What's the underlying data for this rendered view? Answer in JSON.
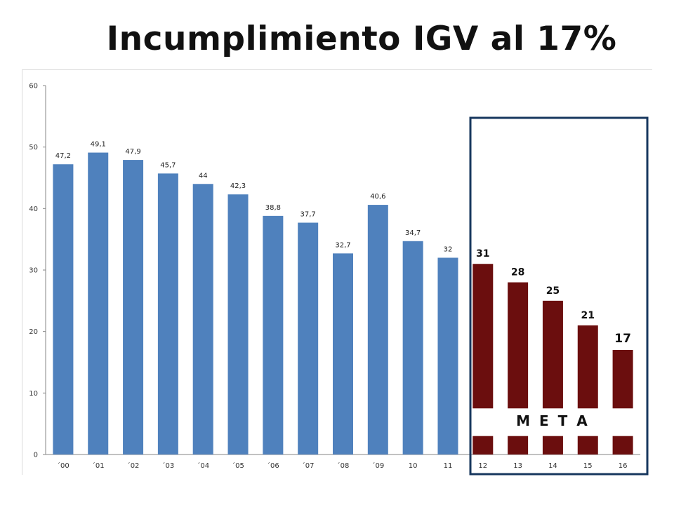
{
  "title": "Incumplimiento IGV al 17%",
  "chart_data": {
    "type": "bar",
    "title": "Incumplimiento IGV al 17%",
    "categories": [
      "´00",
      "´01",
      "´02",
      "´03",
      "´04",
      "´05",
      "´06",
      "´07",
      "´08",
      "´09",
      "10",
      "11",
      "12",
      "13",
      "14",
      "15",
      "16"
    ],
    "series": [
      {
        "name": "",
        "color": "#4f81bd",
        "values": [
          47.2,
          49.1,
          47.9,
          45.7,
          44,
          42.3,
          38.8,
          37.7,
          32.7,
          40.6,
          34.7,
          32,
          null,
          null,
          null,
          null,
          null
        ],
        "labels": [
          "47,2",
          "49,1",
          "47,9",
          "45,7",
          "44",
          "42,3",
          "38,8",
          "37,7",
          "32,7",
          "40,6",
          "34,7",
          "32",
          "",
          "",
          "",
          "",
          ""
        ]
      },
      {
        "name": "",
        "color": "#6b0e0e",
        "values": [
          null,
          null,
          null,
          null,
          null,
          null,
          null,
          null,
          null,
          null,
          null,
          null,
          31,
          28,
          25,
          21,
          17
        ],
        "labels": [
          "",
          "",
          "",
          "",
          "",
          "",
          "",
          "",
          "",
          "",
          "",
          "",
          "31",
          "28",
          "25",
          "21",
          "17"
        ]
      }
    ],
    "yticks": [
      "0",
      "10",
      "20",
      "30",
      "40",
      "50",
      "60"
    ],
    "ylim": [
      0,
      60
    ],
    "grid": false,
    "xlabel": "",
    "ylabel": "",
    "annotation": "M E T A",
    "highlight_box_color": "#17375e"
  }
}
